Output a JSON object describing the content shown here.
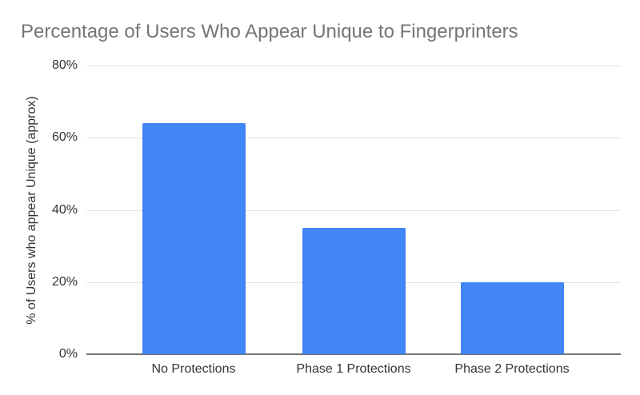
{
  "chart_data": {
    "type": "bar",
    "title": "Percentage of Users Who Appear Unique to Fingerprinters",
    "categories": [
      "No Protections",
      "Phase 1 Protections",
      "Phase 2 Protections"
    ],
    "values": [
      64,
      35,
      20
    ],
    "xlabel": "",
    "ylabel": "% of Users who appear Unique (approx)",
    "ylim": [
      0,
      80
    ],
    "yticks": [
      0,
      20,
      40,
      60,
      80
    ],
    "ytick_labels": [
      "0%",
      "20%",
      "40%",
      "60%",
      "80%"
    ],
    "grid": true,
    "legend_position": "none",
    "bar_color": "#4285f4",
    "title_color": "#757575",
    "axis_text_color": "#333333",
    "gridline_color": "#e3e3e3",
    "axis_line_color": "#757575"
  }
}
